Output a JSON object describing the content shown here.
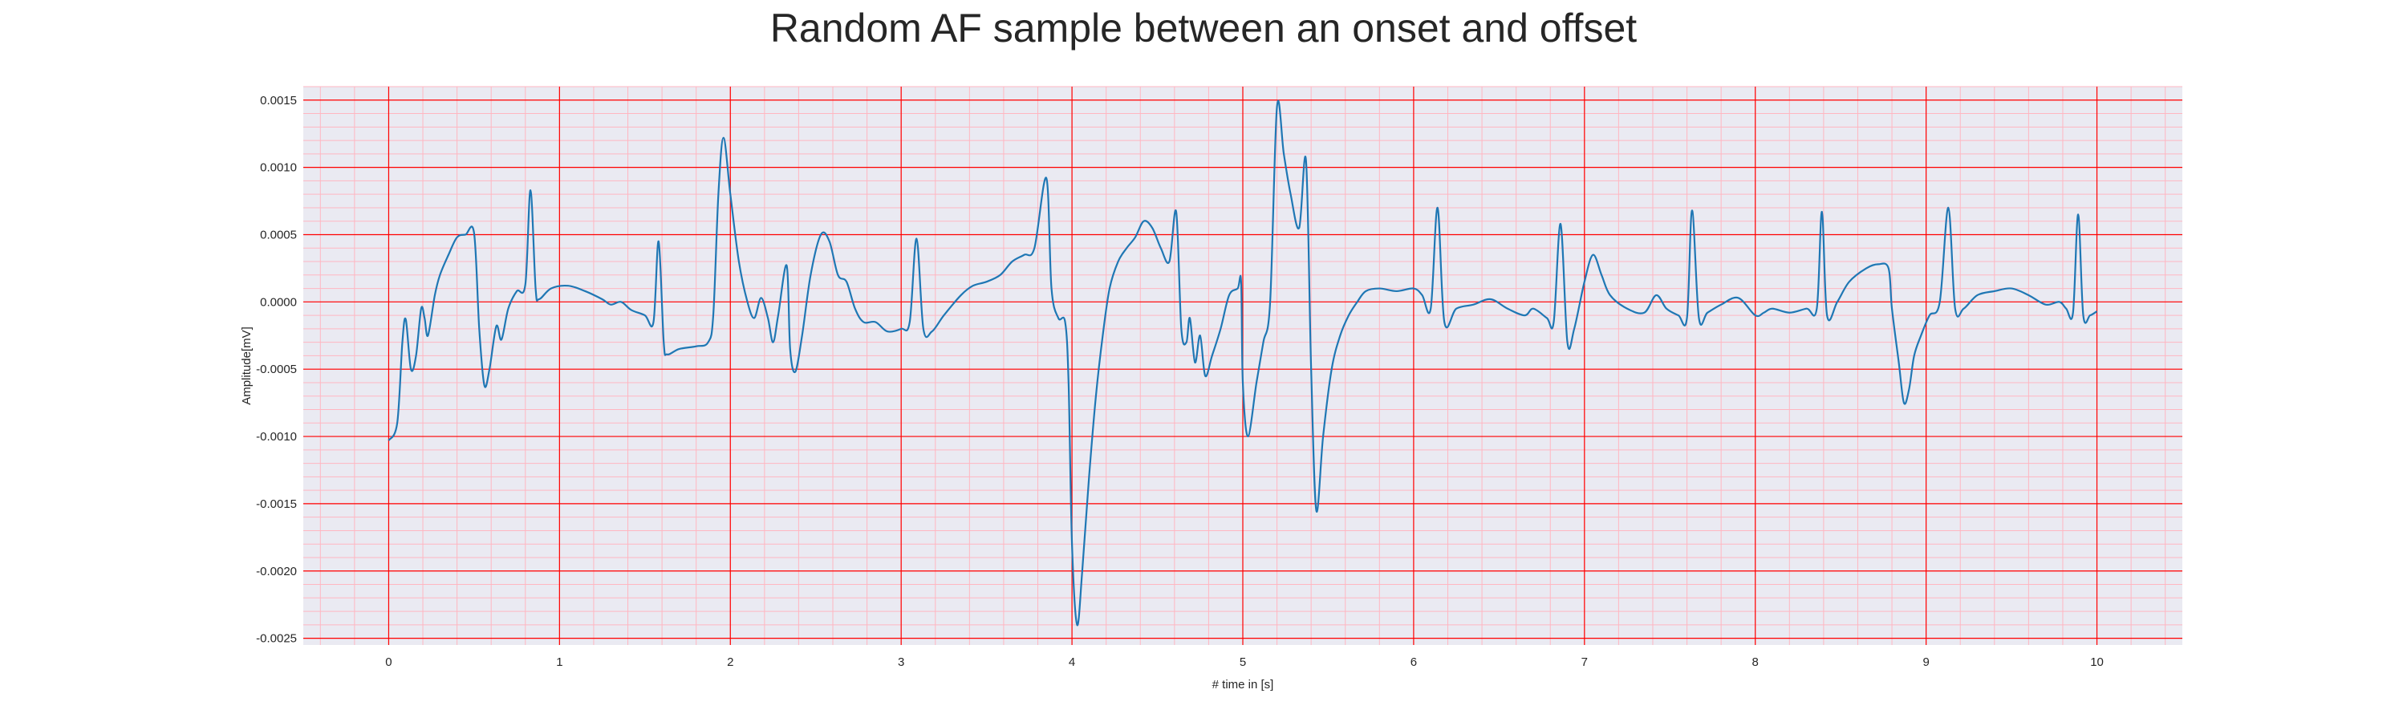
{
  "chart_data": {
    "type": "line",
    "title": "Random AF sample between an onset and offset",
    "xlabel": "# time in [s]",
    "ylabel": "Amplitude[mV]",
    "xlim": [
      -0.5,
      10.5
    ],
    "ylim": [
      -0.00255,
      0.0016
    ],
    "x_ticks": [
      0,
      1,
      2,
      3,
      4,
      5,
      6,
      7,
      8,
      9,
      10
    ],
    "y_ticks": [
      "-0.0025",
      "-0.0020",
      "-0.0015",
      "-0.0010",
      "-0.0005",
      "0.0000",
      "0.0005",
      "0.0010",
      "0.0015"
    ],
    "grid": true,
    "colors": {
      "background": "#eaeaf2",
      "major_grid": "#ff0000",
      "minor_grid": "#ffb6c1",
      "line": "#1f77b4"
    },
    "series": [
      {
        "points": [
          [
            0.0,
            -0.00103
          ],
          [
            0.05,
            -0.0009
          ],
          [
            0.08,
            -0.0003
          ],
          [
            0.1,
            -0.00013
          ],
          [
            0.13,
            -0.0005
          ],
          [
            0.16,
            -0.0004
          ],
          [
            0.19,
            -5e-05
          ],
          [
            0.21,
            -0.00012
          ],
          [
            0.23,
            -0.00025
          ],
          [
            0.27,
            5e-05
          ],
          [
            0.3,
            0.0002
          ],
          [
            0.35,
            0.00035
          ],
          [
            0.4,
            0.00048
          ],
          [
            0.45,
            0.0005
          ],
          [
            0.5,
            0.00051
          ],
          [
            0.53,
            -0.0002
          ],
          [
            0.56,
            -0.00062
          ],
          [
            0.59,
            -0.0005
          ],
          [
            0.63,
            -0.00018
          ],
          [
            0.66,
            -0.00028
          ],
          [
            0.7,
            -5e-05
          ],
          [
            0.75,
            8e-05
          ],
          [
            0.8,
            0.00013
          ],
          [
            0.83,
            0.00083
          ],
          [
            0.86,
            0.0001
          ],
          [
            0.88,
            2e-05
          ],
          [
            0.95,
            0.0001
          ],
          [
            1.05,
            0.00012
          ],
          [
            1.15,
            8e-05
          ],
          [
            1.25,
            2e-05
          ],
          [
            1.3,
            -2e-05
          ],
          [
            1.36,
            0.0
          ],
          [
            1.42,
            -6e-05
          ],
          [
            1.5,
            -0.0001
          ],
          [
            1.55,
            -0.00015
          ],
          [
            1.58,
            0.00045
          ],
          [
            1.61,
            -0.0003
          ],
          [
            1.63,
            -0.00039
          ],
          [
            1.7,
            -0.00035
          ],
          [
            1.8,
            -0.00033
          ],
          [
            1.87,
            -0.0003
          ],
          [
            1.9,
            -0.0001
          ],
          [
            1.93,
            0.0008
          ],
          [
            1.96,
            0.00122
          ],
          [
            2.0,
            0.0008
          ],
          [
            2.05,
            0.0003
          ],
          [
            2.1,
            0.0
          ],
          [
            2.14,
            -0.00012
          ],
          [
            2.18,
            3e-05
          ],
          [
            2.22,
            -0.00012
          ],
          [
            2.25,
            -0.0003
          ],
          [
            2.28,
            -0.0001
          ],
          [
            2.33,
            0.00027
          ],
          [
            2.35,
            -0.00035
          ],
          [
            2.38,
            -0.00052
          ],
          [
            2.42,
            -0.00025
          ],
          [
            2.47,
            0.0002
          ],
          [
            2.53,
            0.0005
          ],
          [
            2.58,
            0.00045
          ],
          [
            2.63,
            0.0002
          ],
          [
            2.68,
            0.00015
          ],
          [
            2.73,
            -5e-05
          ],
          [
            2.78,
            -0.00015
          ],
          [
            2.85,
            -0.00015
          ],
          [
            2.92,
            -0.00022
          ],
          [
            3.0,
            -0.0002
          ],
          [
            3.05,
            -0.00015
          ],
          [
            3.09,
            0.00047
          ],
          [
            3.13,
            -0.0002
          ],
          [
            3.18,
            -0.00022
          ],
          [
            3.25,
            -0.0001
          ],
          [
            3.35,
            5e-05
          ],
          [
            3.42,
            0.00012
          ],
          [
            3.5,
            0.00015
          ],
          [
            3.58,
            0.0002
          ],
          [
            3.65,
            0.0003
          ],
          [
            3.72,
            0.00035
          ],
          [
            3.78,
            0.0004
          ],
          [
            3.85,
            0.00092
          ],
          [
            3.88,
            0.0001
          ],
          [
            3.92,
            -0.00012
          ],
          [
            3.96,
            -0.00015
          ],
          [
            3.98,
            -0.0006
          ],
          [
            4.0,
            -0.0018
          ],
          [
            4.03,
            -0.0024
          ],
          [
            4.06,
            -0.002
          ],
          [
            4.1,
            -0.0013
          ],
          [
            4.14,
            -0.0007
          ],
          [
            4.18,
            -0.00025
          ],
          [
            4.22,
            0.0001
          ],
          [
            4.27,
            0.0003
          ],
          [
            4.32,
            0.0004
          ],
          [
            4.37,
            0.00048
          ],
          [
            4.42,
            0.0006
          ],
          [
            4.47,
            0.00055
          ],
          [
            4.52,
            0.0004
          ],
          [
            4.57,
            0.0003
          ],
          [
            4.61,
            0.00067
          ],
          [
            4.64,
            -0.0002
          ],
          [
            4.67,
            -0.0003
          ],
          [
            4.69,
            -0.00012
          ],
          [
            4.72,
            -0.00045
          ],
          [
            4.75,
            -0.00025
          ],
          [
            4.78,
            -0.00055
          ],
          [
            4.82,
            -0.0004
          ],
          [
            4.87,
            -0.0002
          ],
          [
            4.92,
            5e-05
          ],
          [
            4.97,
            0.0001
          ],
          [
            4.99,
            0.00015
          ],
          [
            5.0,
            -0.0006
          ],
          [
            5.03,
            -0.001
          ],
          [
            5.08,
            -0.0006
          ],
          [
            5.12,
            -0.0003
          ],
          [
            5.16,
            0.0
          ],
          [
            5.2,
            0.00145
          ],
          [
            5.24,
            0.0011
          ],
          [
            5.28,
            0.0008
          ],
          [
            5.33,
            0.00055
          ],
          [
            5.37,
            0.00105
          ],
          [
            5.4,
            -0.0005
          ],
          [
            5.43,
            -0.00155
          ],
          [
            5.47,
            -0.001
          ],
          [
            5.52,
            -0.0005
          ],
          [
            5.57,
            -0.00025
          ],
          [
            5.62,
            -0.0001
          ],
          [
            5.67,
            0.0
          ],
          [
            5.72,
            8e-05
          ],
          [
            5.8,
            0.0001
          ],
          [
            5.9,
            8e-05
          ],
          [
            6.0,
            0.0001
          ],
          [
            6.05,
            5e-05
          ],
          [
            6.1,
            -5e-05
          ],
          [
            6.14,
            0.0007
          ],
          [
            6.18,
            -0.00015
          ],
          [
            6.25,
            -5e-05
          ],
          [
            6.35,
            -2e-05
          ],
          [
            6.45,
            2e-05
          ],
          [
            6.55,
            -5e-05
          ],
          [
            6.65,
            -0.0001
          ],
          [
            6.7,
            -5e-05
          ],
          [
            6.78,
            -0.00012
          ],
          [
            6.82,
            -0.00015
          ],
          [
            6.86,
            0.00058
          ],
          [
            6.9,
            -0.0003
          ],
          [
            6.94,
            -0.0002
          ],
          [
            7.0,
            0.00015
          ],
          [
            7.05,
            0.00035
          ],
          [
            7.1,
            0.0002
          ],
          [
            7.15,
            5e-05
          ],
          [
            7.25,
            -5e-05
          ],
          [
            7.35,
            -8e-05
          ],
          [
            7.42,
            5e-05
          ],
          [
            7.48,
            -5e-05
          ],
          [
            7.55,
            -0.0001
          ],
          [
            7.6,
            -0.00012
          ],
          [
            7.63,
            0.00068
          ],
          [
            7.67,
            -0.00012
          ],
          [
            7.72,
            -8e-05
          ],
          [
            7.8,
            -2e-05
          ],
          [
            7.9,
            3e-05
          ],
          [
            8.0,
            -0.0001
          ],
          [
            8.05,
            -8e-05
          ],
          [
            8.1,
            -5e-05
          ],
          [
            8.2,
            -8e-05
          ],
          [
            8.3,
            -5e-05
          ],
          [
            8.36,
            -5e-05
          ],
          [
            8.39,
            0.00067
          ],
          [
            8.42,
            -0.0001
          ],
          [
            8.48,
            0.0
          ],
          [
            8.55,
            0.00015
          ],
          [
            8.65,
            0.00025
          ],
          [
            8.72,
            0.00028
          ],
          [
            8.78,
            0.00025
          ],
          [
            8.8,
            -5e-05
          ],
          [
            8.84,
            -0.00045
          ],
          [
            8.87,
            -0.00075
          ],
          [
            8.9,
            -0.00065
          ],
          [
            8.93,
            -0.0004
          ],
          [
            8.97,
            -0.00025
          ],
          [
            9.02,
            -0.0001
          ],
          [
            9.08,
            0.0
          ],
          [
            9.13,
            0.0007
          ],
          [
            9.17,
            -5e-05
          ],
          [
            9.22,
            -5e-05
          ],
          [
            9.3,
            5e-05
          ],
          [
            9.4,
            8e-05
          ],
          [
            9.5,
            0.0001
          ],
          [
            9.6,
            5e-05
          ],
          [
            9.7,
            -2e-05
          ],
          [
            9.78,
            0.0
          ],
          [
            9.82,
            -5e-05
          ],
          [
            9.86,
            -8e-05
          ],
          [
            9.89,
            0.00065
          ],
          [
            9.92,
            -0.0001
          ],
          [
            9.96,
            -0.0001
          ],
          [
            10.0,
            -7e-05
          ]
        ]
      }
    ]
  }
}
